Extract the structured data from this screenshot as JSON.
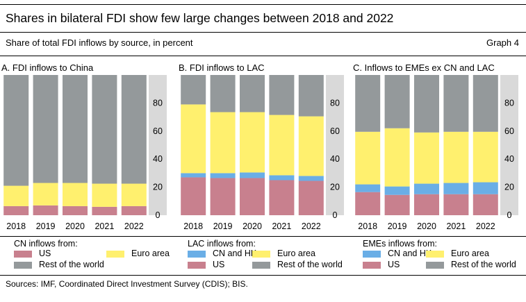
{
  "figure": {
    "title": "Shares in bilateral FDI show few large changes between 2018 and 2022",
    "subtitle": "Share of total FDI inflows by source, in percent",
    "graph_label": "Graph 4",
    "sources": "Sources: IMF, Coordinated Direct Investment Survey (CDIS); BIS."
  },
  "colors": {
    "US": "#c8808e",
    "CN and HK": "#6aaee6",
    "Euro area": "#fff06e",
    "Rest of the world": "#94999b",
    "axis_band": "#d9d9d9"
  },
  "chart_data": [
    {
      "type": "bar",
      "stacked": true,
      "title": "A. FDI inflows to China",
      "categories": [
        "2018",
        "2019",
        "2020",
        "2021",
        "2022"
      ],
      "ylim": [
        0,
        100
      ],
      "yticks": [
        0,
        20,
        40,
        60,
        80
      ],
      "y_axis_side": "right",
      "grid": false,
      "legend_title": "CN inflows from:",
      "legend_position": "bottom",
      "series": [
        {
          "name": "US",
          "values": [
            6.5,
            7,
            6.5,
            6,
            6.5
          ]
        },
        {
          "name": "Euro area",
          "values": [
            14.5,
            16,
            16.5,
            16.5,
            16
          ]
        },
        {
          "name": "Rest of the world",
          "values": [
            79,
            77,
            77,
            77.5,
            77.5
          ]
        }
      ]
    },
    {
      "type": "bar",
      "stacked": true,
      "title": "B. FDI inflows to LAC",
      "categories": [
        "2018",
        "2019",
        "2020",
        "2021",
        "2022"
      ],
      "ylim": [
        0,
        100
      ],
      "yticks": [
        0,
        20,
        40,
        60,
        80
      ],
      "y_axis_side": "right",
      "grid": false,
      "legend_title": "LAC inflows from:",
      "legend_position": "bottom",
      "series": [
        {
          "name": "US",
          "values": [
            27,
            26.5,
            26.5,
            25,
            24.5
          ]
        },
        {
          "name": "CN and HK",
          "values": [
            3,
            3.5,
            4,
            3.5,
            3.5
          ]
        },
        {
          "name": "Euro area",
          "values": [
            49,
            43.5,
            43,
            43,
            42.5
          ]
        },
        {
          "name": "Rest of the world",
          "values": [
            21,
            26.5,
            26.5,
            28.5,
            29.5
          ]
        }
      ]
    },
    {
      "type": "bar",
      "stacked": true,
      "title": "C. Inflows to EMEs ex CN and LAC",
      "categories": [
        "2018",
        "2019",
        "2020",
        "2021",
        "2022"
      ],
      "ylim": [
        0,
        100
      ],
      "yticks": [
        0,
        20,
        40,
        60,
        80
      ],
      "y_axis_side": "right",
      "grid": false,
      "legend_title": "EMEs inflows from:",
      "legend_position": "bottom",
      "series": [
        {
          "name": "US",
          "values": [
            16.5,
            14.5,
            15,
            15,
            15
          ]
        },
        {
          "name": "CN and HK",
          "values": [
            5.5,
            6,
            7.5,
            8,
            8.5
          ]
        },
        {
          "name": "Euro area",
          "values": [
            37.5,
            41.5,
            36.5,
            36.5,
            36
          ]
        },
        {
          "name": "Rest of the world",
          "values": [
            40.5,
            38,
            41,
            40.5,
            40.5
          ]
        }
      ]
    }
  ]
}
